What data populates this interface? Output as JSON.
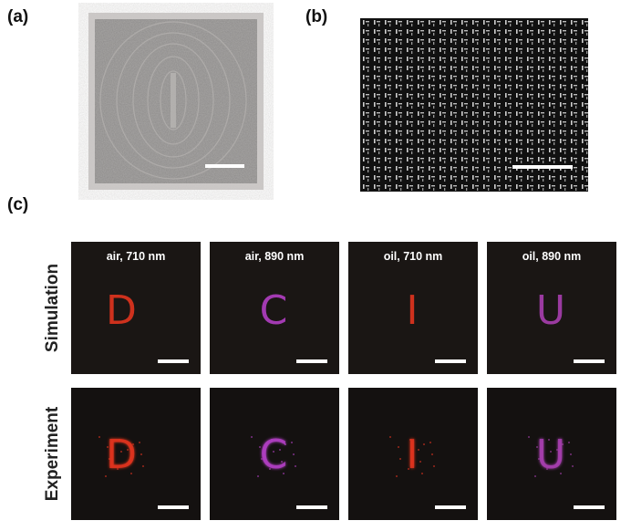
{
  "panels": {
    "a": {
      "label": "(a)"
    },
    "b": {
      "label": "(b)"
    },
    "c": {
      "label": "(c)",
      "rows": [
        "Simulation",
        "Experiment"
      ],
      "columns": [
        {
          "title": "air, 710 nm",
          "letter": "D",
          "color": "#e2341f"
        },
        {
          "title": "air, 890 nm",
          "letter": "C",
          "color": "#b23fc4"
        },
        {
          "title": "oil, 710 nm",
          "letter": "I",
          "color": "#e2341f"
        },
        {
          "title": "oil, 890 nm",
          "letter": "U",
          "color": "#a83fb0"
        }
      ]
    }
  }
}
